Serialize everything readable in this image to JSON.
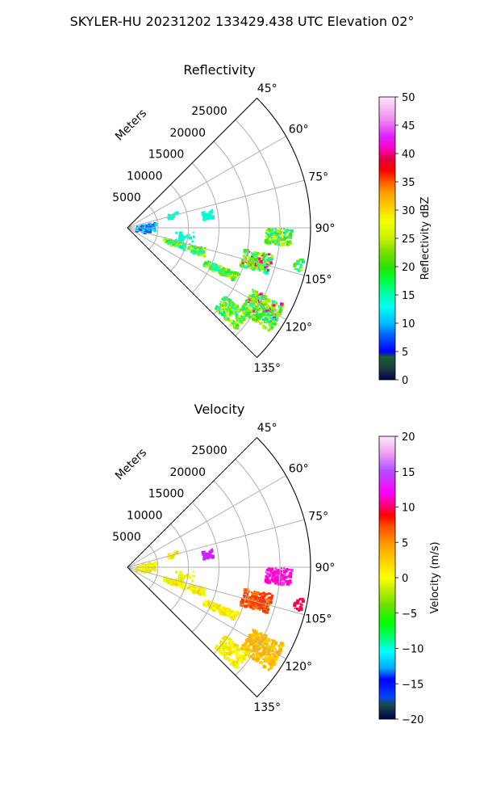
{
  "suptitle": "SKYLER-HU  20231202  133429.438 UTC Elevation 02°",
  "chart_data": [
    {
      "type": "heatmap",
      "title": "Reflectivity",
      "projection": "polar-sector",
      "theta_ticks": [
        "45°",
        "60°",
        "75°",
        "90°",
        "105°",
        "120°",
        "135°"
      ],
      "theta_values": [
        45,
        60,
        75,
        90,
        105,
        120,
        135
      ],
      "r_label": "Meters",
      "r_ticks": [
        "5000",
        "10000",
        "15000",
        "20000",
        "25000"
      ],
      "r_values": [
        5000,
        10000,
        15000,
        20000,
        25000
      ],
      "theta_lim": [
        45,
        135
      ],
      "r_lim": [
        0,
        30000
      ],
      "grid": true,
      "colorbar": {
        "label": "Reflectivity dBZ",
        "range": [
          0,
          50
        ],
        "ticks": [
          "0",
          "5",
          "10",
          "15",
          "20",
          "25",
          "30",
          "35",
          "40",
          "45",
          "50"
        ],
        "tick_values": [
          0,
          5,
          10,
          15,
          20,
          25,
          30,
          35,
          40,
          45,
          50
        ]
      }
    },
    {
      "type": "heatmap",
      "title": "Velocity",
      "projection": "polar-sector",
      "theta_ticks": [
        "45°",
        "60°",
        "75°",
        "90°",
        "105°",
        "120°",
        "135°"
      ],
      "theta_values": [
        45,
        60,
        75,
        90,
        105,
        120,
        135
      ],
      "r_label": "Meters",
      "r_ticks": [
        "5000",
        "10000",
        "15000",
        "20000",
        "25000"
      ],
      "r_values": [
        5000,
        10000,
        15000,
        20000,
        25000
      ],
      "theta_lim": [
        45,
        135
      ],
      "r_lim": [
        0,
        30000
      ],
      "grid": true,
      "colorbar": {
        "label": "Velocity (m/s)",
        "range": [
          -20,
          20
        ],
        "ticks": [
          "−20",
          "−15",
          "−10",
          "−5",
          "0",
          "5",
          "10",
          "15",
          "20"
        ],
        "tick_values": [
          -20,
          -15,
          -10,
          -5,
          0,
          5,
          10,
          15,
          20
        ]
      }
    }
  ]
}
